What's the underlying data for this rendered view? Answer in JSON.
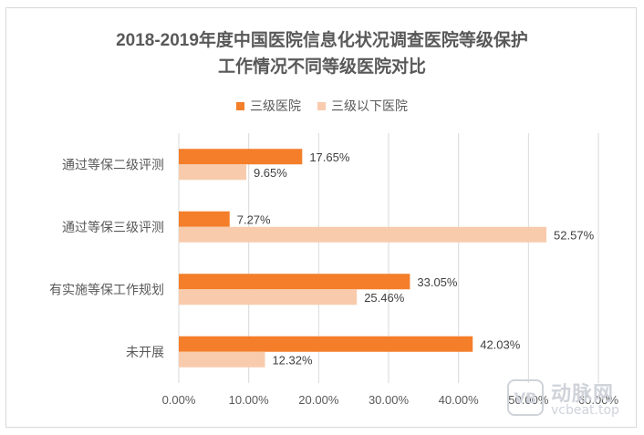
{
  "chart_data": {
    "type": "bar",
    "orientation": "horizontal",
    "title_lines": [
      "2018-2019年度中国医院信息化状况调查医院等级保护",
      "工作情况不同等级医院对比"
    ],
    "categories": [
      "通过等保二级评测",
      "通过等保三级评测",
      "有实施等保工作规划",
      "未开展"
    ],
    "series": [
      {
        "name": "三级医院",
        "values": [
          17.65,
          7.27,
          33.05,
          42.03
        ],
        "labels": [
          "17.65%",
          "7.27%",
          "33.05%",
          "42.03%"
        ],
        "color": "#f47e2a"
      },
      {
        "name": "三级以下医院",
        "values": [
          9.65,
          52.57,
          25.46,
          12.32
        ],
        "labels": [
          "9.65%",
          "52.57%",
          "25.46%",
          "12.32%"
        ],
        "color": "#f8cbad"
      }
    ],
    "xlim": [
      0,
      60
    ],
    "xticks": [
      0,
      10,
      20,
      30,
      40,
      50,
      60
    ],
    "xtick_labels": [
      "0.00%",
      "10.00%",
      "20.00%",
      "30.00%",
      "40.00%",
      "50.00%",
      "60.00%"
    ],
    "grid": true,
    "legend_position": "top"
  },
  "watermark": {
    "logo_text": "VB",
    "cn": "动脉网",
    "url": "vcbeat.top"
  }
}
